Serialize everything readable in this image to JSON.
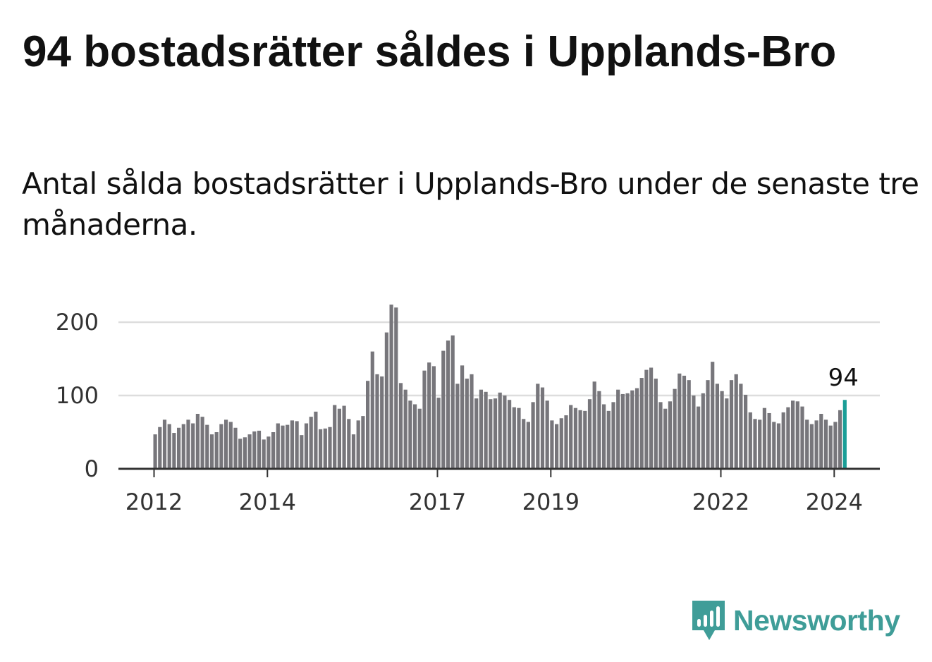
{
  "title": "94 bostadsrätter såldes i Upplands-Bro",
  "subtitle": "Antal sålda bostadsrätter i Upplands-Bro under de senaste tre månaderna.",
  "brand": {
    "name": "Newsworthy",
    "color": "#3f9d98",
    "icon": "newsworthy-logo-icon"
  },
  "colors": {
    "bar": "#77767b",
    "highlight": "#1a9e97",
    "grid": "#dddddd",
    "axis": "#333333"
  },
  "chart_data": {
    "type": "bar",
    "title": "94 bostadsrätter såldes i Upplands-Bro",
    "xlabel": "",
    "ylabel": "",
    "ylim": [
      0,
      230
    ],
    "yticks": [
      0,
      100,
      200
    ],
    "xticks": [
      "2012",
      "2014",
      "2017",
      "2019",
      "2022",
      "2024"
    ],
    "start_year": 2012,
    "start_month": 1,
    "values": [
      47,
      57,
      67,
      61,
      49,
      56,
      61,
      67,
      62,
      75,
      71,
      60,
      47,
      50,
      61,
      67,
      64,
      56,
      41,
      43,
      47,
      51,
      52,
      40,
      44,
      50,
      62,
      59,
      60,
      66,
      65,
      46,
      62,
      71,
      78,
      54,
      55,
      57,
      87,
      82,
      86,
      68,
      47,
      66,
      72,
      120,
      160,
      129,
      126,
      186,
      224,
      220,
      117,
      108,
      93,
      88,
      82,
      134,
      145,
      140,
      97,
      161,
      175,
      182,
      116,
      141,
      123,
      129,
      96,
      108,
      105,
      95,
      96,
      104,
      100,
      94,
      84,
      83,
      68,
      64,
      91,
      116,
      111,
      93,
      66,
      61,
      69,
      73,
      87,
      83,
      80,
      79,
      95,
      119,
      106,
      88,
      79,
      91,
      108,
      102,
      103,
      107,
      110,
      124,
      135,
      138,
      123,
      91,
      82,
      92,
      109,
      130,
      127,
      121,
      100,
      85,
      103,
      121,
      146,
      116,
      106,
      96,
      121,
      129,
      116,
      101,
      77,
      68,
      67,
      83,
      76,
      64,
      62,
      77,
      84,
      93,
      92,
      85,
      67,
      61,
      66,
      75,
      67,
      59,
      64,
      80,
      94
    ],
    "highlight_last": 1,
    "annotation": {
      "label": "94"
    }
  }
}
